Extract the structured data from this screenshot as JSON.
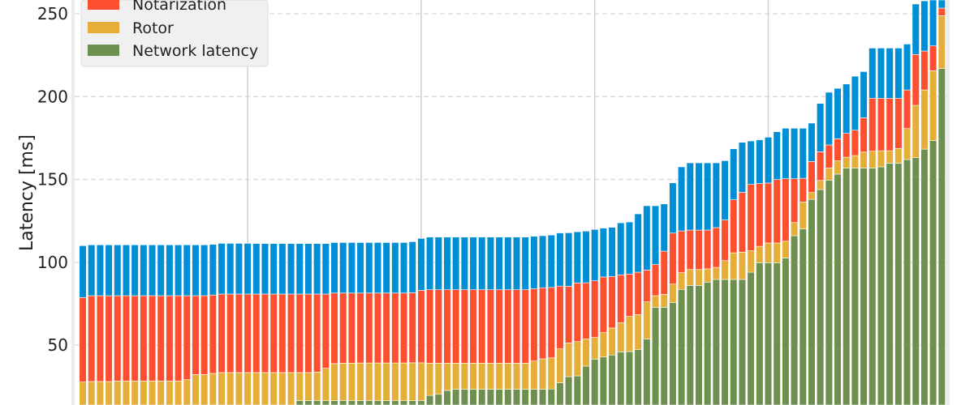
{
  "chart_data": {
    "type": "bar",
    "stacked": true,
    "title": "",
    "xlabel": "",
    "ylabel": "Latency [ms]",
    "ylim": [
      13.7,
      259
    ],
    "yticks": [
      50,
      100,
      150,
      200,
      250
    ],
    "x_gridlines_every_bars": 20,
    "grid": true,
    "legend_placement": "top-left",
    "num_bars": 100,
    "series": [
      {
        "name": "Network latency",
        "color": "#6d904f",
        "values": [
          10,
          10,
          10,
          10,
          10,
          10,
          10,
          10,
          10,
          10,
          10,
          10,
          10,
          10,
          10,
          10,
          10,
          10,
          10,
          10,
          10,
          10,
          10,
          10,
          10,
          16.4,
          16.4,
          16.4,
          16.4,
          16.4,
          16.4,
          16.4,
          16.4,
          16.4,
          16.4,
          16.4,
          16.4,
          16.4,
          16.4,
          16.4,
          19.6,
          20.3,
          22.6,
          23.3,
          23.3,
          23.3,
          23.3,
          23.3,
          23.3,
          23.3,
          23.3,
          23.3,
          23.3,
          23.3,
          23.5,
          27.2,
          30.9,
          31.4,
          37.3,
          41.5,
          42.8,
          44.0,
          45.9,
          46.1,
          47.2,
          53.7,
          72.8,
          72.8,
          75.7,
          83.6,
          86.0,
          86.0,
          88.0,
          89.6,
          89.6,
          89.6,
          89.6,
          94.0,
          99.7,
          99.7,
          99.7,
          102.6,
          116.0,
          120.2,
          138.0,
          143.9,
          149.6,
          153.2,
          156.9,
          156.9,
          156.9,
          156.9,
          157.6,
          159.8,
          159.8,
          162.0,
          163.1,
          168.3,
          173.4,
          216.9
        ]
      },
      {
        "name": "Rotor",
        "color": "#e5ae38",
        "values": [
          17.7,
          18.0,
          18.0,
          18.0,
          18.3,
          18.3,
          18.3,
          18.3,
          18.3,
          18.3,
          18.3,
          18.3,
          19.1,
          22.2,
          22.2,
          22.9,
          23.4,
          23.4,
          23.4,
          23.4,
          23.4,
          23.4,
          23.4,
          23.4,
          23.4,
          17.0,
          17.0,
          17.3,
          19.6,
          22.4,
          22.7,
          22.7,
          22.8,
          22.8,
          22.8,
          22.8,
          22.8,
          22.8,
          22.9,
          22.9,
          19.5,
          18.8,
          16.5,
          15.8,
          15.8,
          15.8,
          15.8,
          15.8,
          15.8,
          15.8,
          15.8,
          15.8,
          17.1,
          18.4,
          18.8,
          20.5,
          20.4,
          20.7,
          16.4,
          13.1,
          14.7,
          16.3,
          17.6,
          21.2,
          21.2,
          22.4,
          7.0,
          7.8,
          11.1,
          10.1,
          9.6,
          9.6,
          8.0,
          7.3,
          11.4,
          16.1,
          16.5,
          12.9,
          9.9,
          11.9,
          11.9,
          10.1,
          8.0,
          16.2,
          4.1,
          5.5,
          7.3,
          8.0,
          6.5,
          7.5,
          9.6,
          10.1,
          9.7,
          7.5,
          8.9,
          18.7,
          31.6,
          35.7,
          42.2,
          31.9
        ]
      },
      {
        "name": "Notarization",
        "color": "#fc4f30",
        "values": [
          51.0,
          51.8,
          51.8,
          51.8,
          51.5,
          51.5,
          51.5,
          51.5,
          51.5,
          51.5,
          51.5,
          51.5,
          50.7,
          47.6,
          47.6,
          47.3,
          47.4,
          47.4,
          47.4,
          47.4,
          47.4,
          47.4,
          47.4,
          47.4,
          47.4,
          47.4,
          47.4,
          47.1,
          44.8,
          42.6,
          42.3,
          42.3,
          42.2,
          42.2,
          42.2,
          42.2,
          42.2,
          42.2,
          42.3,
          43.7,
          44.3,
          44.3,
          44.3,
          44.3,
          44.3,
          44.3,
          44.3,
          44.3,
          44.3,
          44.3,
          44.3,
          44.3,
          43.6,
          42.9,
          42.5,
          37.9,
          34.2,
          35.4,
          33.9,
          34.2,
          33.6,
          31.1,
          28.9,
          25.6,
          25.6,
          19.2,
          18.8,
          26.1,
          30.8,
          25.2,
          23.8,
          23.8,
          23.4,
          24.0,
          24.5,
          32.0,
          36.1,
          40.1,
          37.9,
          36.2,
          38.3,
          37.7,
          26.4,
          14.3,
          18.7,
          17.3,
          13.9,
          13.3,
          14.4,
          15.3,
          20.7,
          32.0,
          31.7,
          31.7,
          30.3,
          23.3,
          30.7,
          23.5,
          15.0,
          4.6
        ]
      },
      {
        "name": null,
        "color": "#008fd5",
        "values": [
          31.3,
          30.7,
          30.7,
          30.7,
          30.7,
          30.7,
          30.7,
          30.7,
          30.7,
          30.7,
          30.7,
          30.7,
          30.7,
          30.7,
          30.7,
          30.6,
          30.6,
          30.6,
          30.6,
          30.6,
          30.5,
          30.5,
          30.5,
          30.5,
          30.5,
          30.5,
          30.5,
          30.5,
          30.5,
          30.5,
          30.5,
          30.5,
          30.5,
          30.5,
          30.5,
          30.5,
          30.5,
          30.5,
          30.8,
          31.4,
          31.8,
          31.8,
          31.8,
          31.8,
          31.8,
          31.8,
          31.8,
          31.8,
          31.8,
          31.8,
          31.8,
          31.8,
          31.7,
          31.4,
          31.6,
          32.1,
          32.3,
          30.9,
          31.2,
          31.0,
          29.5,
          29.7,
          31.4,
          31.4,
          35.2,
          38.8,
          35.5,
          28.5,
          30.3,
          38.7,
          40.6,
          40.6,
          40.6,
          39.1,
          35.8,
          30.8,
          30.2,
          26.2,
          26.4,
          27.7,
          28.9,
          30.5,
          30.5,
          30.2,
          23.2,
          29.2,
          31.8,
          30.5,
          29.8,
          32.6,
          27.9,
          30.3,
          30.3,
          30.3,
          30.3,
          27.7,
          30.5,
          30.3,
          31.4,
          12.6
        ]
      }
    ],
    "legend": [
      "Notarization",
      "Rotor",
      "Network latency"
    ]
  }
}
